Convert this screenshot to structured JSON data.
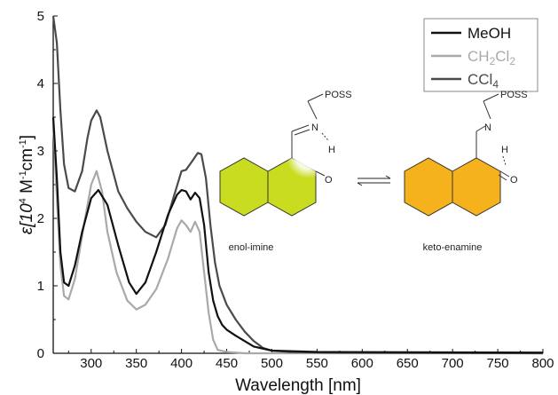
{
  "chart_data": {
    "type": "line",
    "xlabel": "Wavelength [nm]",
    "ylabel_parts": {
      "pre": "ε[10",
      "exp1": "4",
      "mid1": " M",
      "exp2": "-1",
      "mid2": "cm",
      "exp3": "-1",
      "post": "]"
    },
    "xlim": [
      258,
      800
    ],
    "ylim": [
      0,
      5
    ],
    "xticks": [
      300,
      350,
      400,
      450,
      500,
      550,
      600,
      650,
      700,
      750,
      800
    ],
    "yticks": [
      0,
      1,
      2,
      3,
      4,
      5
    ],
    "grid": false,
    "legend_position": "top-right",
    "legend": [
      {
        "id": "meoh",
        "parts": [
          [
            "MeOH",
            false
          ]
        ],
        "color": "#111111"
      },
      {
        "id": "ch2cl2",
        "parts": [
          [
            "CH",
            false
          ],
          [
            "2",
            true
          ],
          [
            "Cl",
            false
          ],
          [
            "2",
            true
          ]
        ],
        "color": "#a9a9a9"
      },
      {
        "id": "ccl4",
        "parts": [
          [
            "CCl",
            false
          ],
          [
            "4",
            true
          ]
        ],
        "color": "#4a4a4a"
      }
    ],
    "series": [
      {
        "id": "meoh",
        "color": "#111111",
        "x": [
          258,
          262,
          266,
          270,
          275,
          282,
          290,
          300,
          308,
          318,
          330,
          342,
          350,
          360,
          372,
          385,
          395,
          400,
          405,
          410,
          415,
          420,
          425,
          430,
          435,
          440,
          445,
          450,
          460,
          470,
          480,
          500,
          550,
          800
        ],
        "y": [
          3.5,
          2.6,
          1.5,
          1.05,
          1.0,
          1.3,
          1.8,
          2.3,
          2.42,
          2.2,
          1.6,
          1.05,
          0.88,
          1.05,
          1.5,
          2.05,
          2.35,
          2.42,
          2.4,
          2.28,
          2.38,
          2.3,
          1.9,
          1.2,
          0.78,
          0.55,
          0.42,
          0.35,
          0.26,
          0.18,
          0.1,
          0.04,
          0.02,
          0.01
        ]
      },
      {
        "id": "ch2cl2",
        "color": "#a9a9a9",
        "x": [
          258,
          262,
          266,
          270,
          275,
          282,
          292,
          300,
          306,
          312,
          318,
          328,
          340,
          350,
          360,
          372,
          385,
          395,
          400,
          405,
          410,
          415,
          420,
          425,
          430,
          435,
          440,
          450,
          460,
          470,
          480,
          500,
          550,
          800
        ],
        "y": [
          3.4,
          2.3,
          1.3,
          0.85,
          0.8,
          1.1,
          1.9,
          2.5,
          2.7,
          2.4,
          1.8,
          1.2,
          0.78,
          0.65,
          0.72,
          0.95,
          1.4,
          1.85,
          1.97,
          1.9,
          1.8,
          1.95,
          1.8,
          1.2,
          0.6,
          0.2,
          0.05,
          0.02,
          0.01,
          0.0,
          0.0,
          0.0,
          0.0,
          0.0
        ]
      },
      {
        "id": "ccl4",
        "color": "#4a4a4a",
        "x": [
          258,
          262,
          266,
          270,
          275,
          282,
          290,
          296,
          300,
          306,
          310,
          318,
          330,
          340,
          350,
          360,
          372,
          382,
          392,
          400,
          405,
          412,
          418,
          422,
          427,
          432,
          437,
          442,
          450,
          460,
          470,
          480,
          490,
          500,
          520,
          560,
          800
        ],
        "y": [
          5.0,
          4.6,
          3.6,
          2.8,
          2.45,
          2.4,
          2.7,
          3.2,
          3.45,
          3.6,
          3.5,
          3.0,
          2.4,
          2.15,
          1.95,
          1.8,
          1.72,
          1.9,
          2.35,
          2.7,
          2.72,
          2.85,
          2.97,
          2.95,
          2.6,
          1.9,
          1.35,
          1.0,
          0.72,
          0.5,
          0.32,
          0.18,
          0.08,
          0.04,
          0.02,
          0.01,
          0.0
        ]
      }
    ]
  },
  "inset": {
    "label_left": "enol-imine",
    "label_right": "keto-enamine",
    "poss": "POSS",
    "atom_n": "N",
    "atom_h": "H",
    "atom_o": "O",
    "colors": {
      "enol": "#c9dc1f",
      "keto": "#f6b21c"
    }
  }
}
